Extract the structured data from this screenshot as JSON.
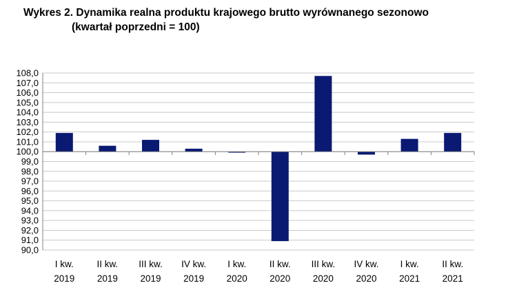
{
  "title_line1": "Wykres 2. Dynamika realna produktu krajowego brutto wyrównanego sezonowo",
  "title_line2": "(kwartał poprzedni = 100)",
  "colors": {
    "bar": "#0a1a73",
    "grid": "#c8c8c8",
    "axis": "#808080"
  },
  "chart_data": {
    "type": "bar",
    "title": "Wykres 2. Dynamika realna produktu krajowego brutto wyrównanego sezonowo (kwartał poprzedni = 100)",
    "baseline": 100,
    "ylim": [
      90,
      108
    ],
    "ytick_step": 1,
    "ytick_labels": [
      "108,0",
      "107,0",
      "106,0",
      "105,0",
      "104,0",
      "103,0",
      "102,0",
      "101,0",
      "100,0",
      "99,0",
      "98,0",
      "97,0",
      "96,0",
      "95,0",
      "94,0",
      "93,0",
      "92,0",
      "91,0",
      "90,0"
    ],
    "grid": true,
    "categories": [
      [
        "I kw.",
        "2019"
      ],
      [
        "II kw.",
        "2019"
      ],
      [
        "III kw.",
        "2019"
      ],
      [
        "IV kw.",
        "2019"
      ],
      [
        "I kw.",
        "2020"
      ],
      [
        "II kw.",
        "2020"
      ],
      [
        "III kw.",
        "2020"
      ],
      [
        "IV kw.",
        "2020"
      ],
      [
        "I kw.",
        "2021"
      ],
      [
        "II kw.",
        "2021"
      ]
    ],
    "values": [
      101.9,
      100.6,
      101.2,
      100.3,
      99.9,
      90.9,
      107.7,
      99.7,
      101.3,
      101.9
    ]
  }
}
